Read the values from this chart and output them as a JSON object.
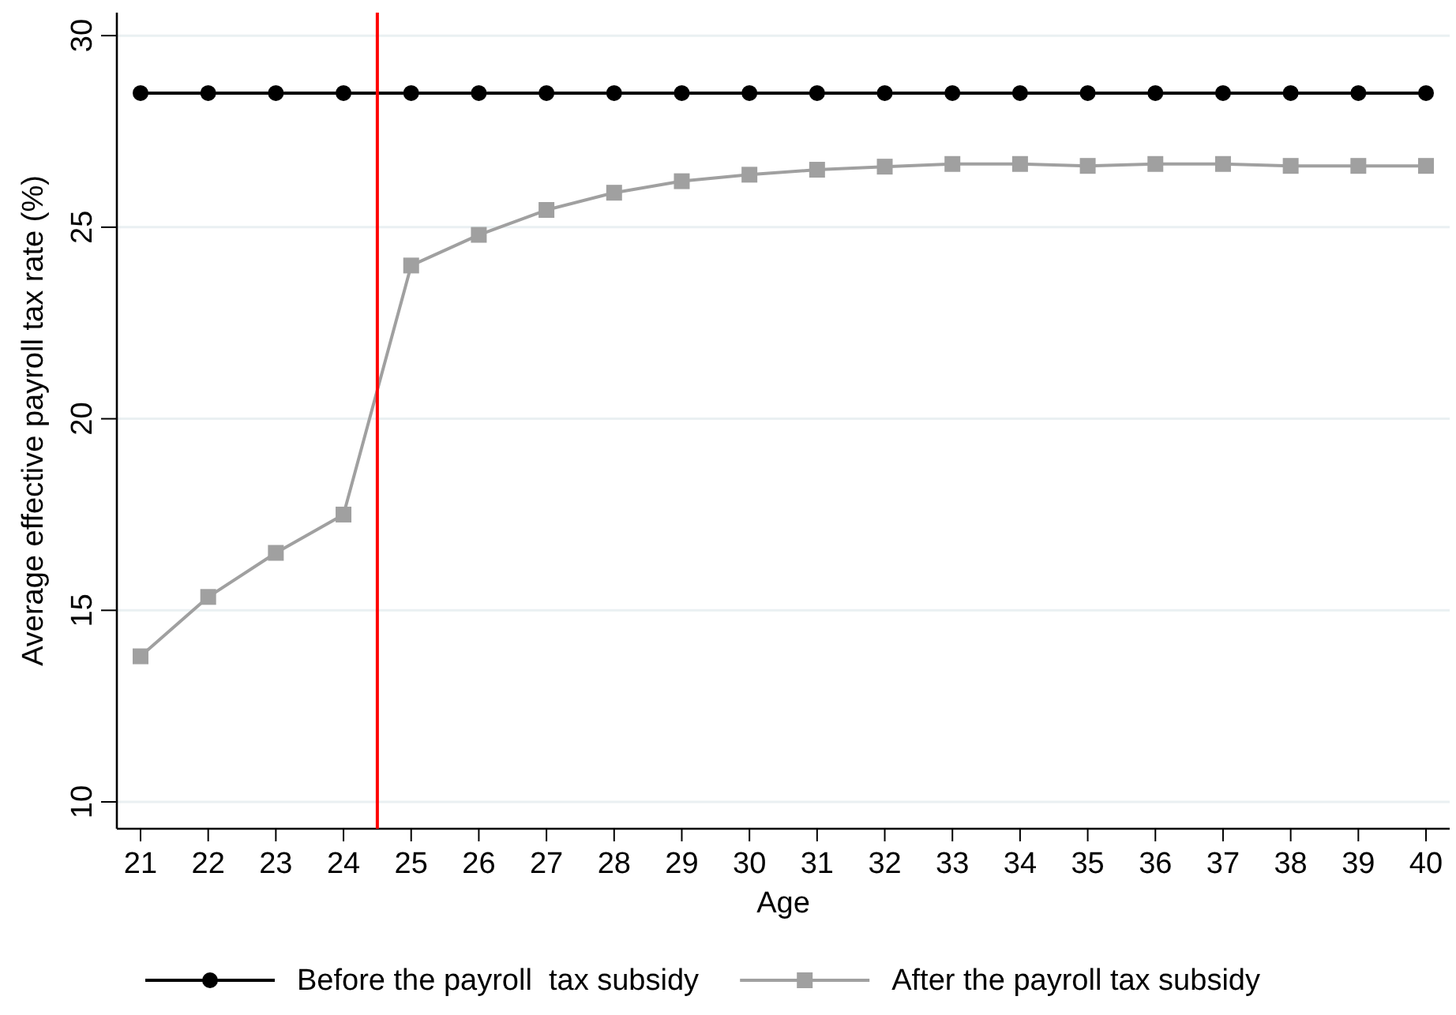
{
  "chart_data": {
    "type": "line",
    "xlabel": "Age",
    "ylabel": "Average effective payroll tax rate (%)",
    "x": [
      21,
      22,
      23,
      24,
      25,
      26,
      27,
      28,
      29,
      30,
      31,
      32,
      33,
      34,
      35,
      36,
      37,
      38,
      39,
      40
    ],
    "xlim": [
      20.65,
      40.35
    ],
    "xticks": [
      21,
      22,
      23,
      24,
      25,
      26,
      27,
      28,
      29,
      30,
      31,
      32,
      33,
      34,
      35,
      36,
      37,
      38,
      39,
      40
    ],
    "ylim": [
      9.3,
      30.6
    ],
    "yticks": [
      10,
      15,
      20,
      25,
      30
    ],
    "grid": "y",
    "legend": "bottom",
    "series": [
      {
        "name": "Before the payroll  tax subsidy",
        "color": "#000000",
        "marker": "circle",
        "values": [
          28.5,
          28.5,
          28.5,
          28.5,
          28.5,
          28.5,
          28.5,
          28.5,
          28.5,
          28.5,
          28.5,
          28.5,
          28.5,
          28.5,
          28.5,
          28.5,
          28.5,
          28.5,
          28.5,
          28.5
        ]
      },
      {
        "name": "After the payroll tax subsidy",
        "color": "#a0a0a0",
        "marker": "square",
        "values": [
          13.8,
          15.35,
          16.5,
          17.5,
          24.0,
          24.8,
          25.45,
          25.9,
          26.2,
          26.37,
          26.5,
          26.58,
          26.65,
          26.65,
          26.6,
          26.65,
          26.65,
          26.6,
          26.6,
          26.6
        ]
      }
    ],
    "ref_lines": [
      {
        "axis": "x",
        "value": 24.5,
        "color": "#ff0000"
      }
    ]
  }
}
